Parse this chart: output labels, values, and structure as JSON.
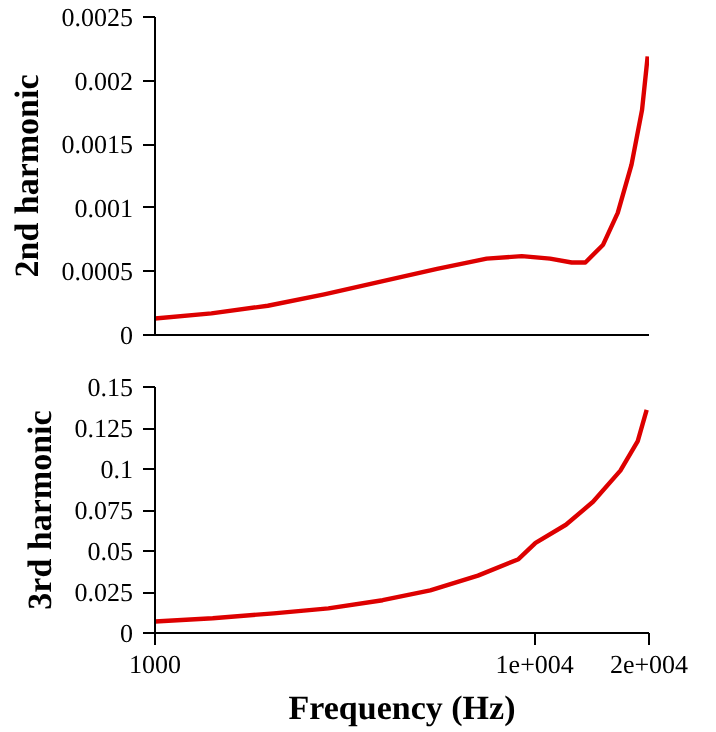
{
  "chart_data": [
    {
      "type": "line",
      "ylabel": "2nd harmonic",
      "xlim": [
        1000,
        20000
      ],
      "ylim": [
        0,
        0.0025
      ],
      "yticks": [
        0,
        0.0005,
        0.001,
        0.0015,
        0.002,
        0.0025
      ],
      "log": "x",
      "grid": false,
      "tick_labels": "y",
      "series": [
        {
          "color": "#dd0000",
          "x": [
            1000,
            1408,
            1982,
            2791,
            3929,
            5532,
            7474,
            9247,
            10974,
            12513,
            13598,
            15143,
            16547,
            17989,
            19175,
            19837
          ],
          "values": [
            0.00013,
            0.00017,
            0.00023,
            0.00032,
            0.00042,
            0.00052,
            0.0006,
            0.00062,
            0.0006,
            0.00057,
            0.00057,
            0.00071,
            0.00096,
            0.00134,
            0.00177,
            0.00219
          ]
        }
      ]
    },
    {
      "type": "line",
      "ylabel": "3rd harmonic",
      "xlabel": "Frequency (Hz)",
      "xlim": [
        1000,
        20000
      ],
      "xticks": [
        1000,
        {
          "value": 10000,
          "label": "1e+004"
        },
        {
          "value": 20000,
          "label": "2e+004"
        }
      ],
      "ylim": [
        0,
        0.15
      ],
      "yticks": [
        0,
        0.025,
        0.05,
        0.075,
        0.1,
        0.125,
        0.15
      ],
      "log": "x",
      "grid": false,
      "series": [
        {
          "color": "#dd0000",
          "x": [
            1000,
            1419,
            2055,
            2862,
            3976,
            5308,
            7088,
            9063,
            10052,
            12084,
            14245,
            16813,
            18680,
            19720
          ],
          "values": [
            0.007,
            0.009,
            0.012,
            0.015,
            0.02,
            0.026,
            0.035,
            0.045,
            0.055,
            0.066,
            0.08,
            0.099,
            0.117,
            0.136
          ]
        }
      ]
    }
  ]
}
